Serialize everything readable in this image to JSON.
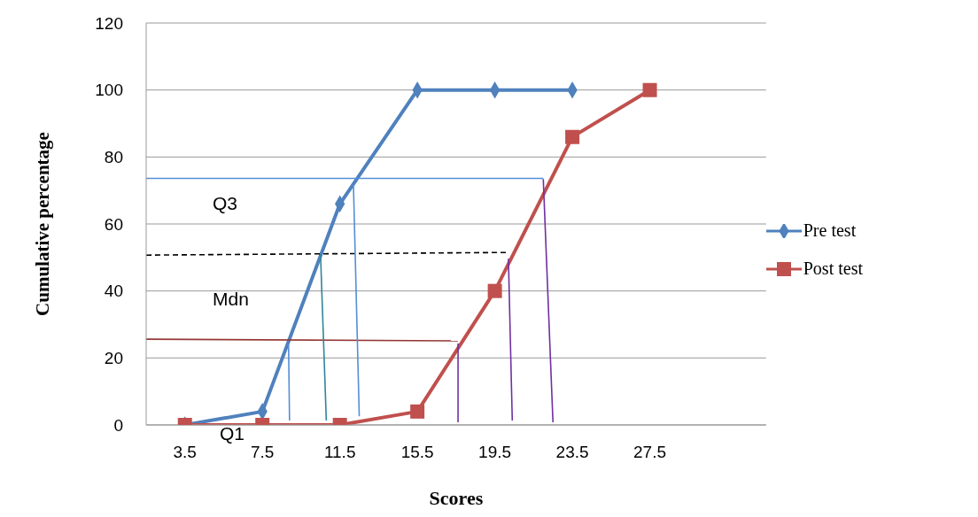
{
  "chart_data": {
    "type": "line",
    "xlabel": "Scores",
    "ylabel": "Cumulative percentage",
    "xlim": [
      1.5,
      33.5
    ],
    "xticks": [
      3.5,
      7.5,
      11.5,
      15.5,
      19.5,
      23.5,
      27.5
    ],
    "ylim": [
      0,
      120
    ],
    "yticks": [
      0,
      20,
      40,
      60,
      80,
      100,
      120
    ],
    "grid": "y",
    "legend": "right",
    "x": [
      3.5,
      7.5,
      11.5,
      15.5,
      19.5,
      23.5,
      27.5
    ],
    "series": [
      {
        "name": "Pre test",
        "color": "#4f81bd",
        "marker": "diamond",
        "values": [
          0,
          4,
          66,
          100,
          100,
          100,
          null
        ]
      },
      {
        "name": "Post test",
        "color": "#c0504d",
        "marker": "square",
        "values": [
          0,
          0,
          0,
          4,
          40,
          86,
          100
        ]
      },
      {
        "color": "#558ed5",
        "marker": "none",
        "x": [
          1.5,
          22.0
        ],
        "values": [
          73.6,
          73.6
        ]
      },
      {
        "color": "#000000",
        "marker": "none",
        "line_style": "dashed",
        "x": [
          1.5,
          20.2
        ],
        "values": [
          50.7,
          51.5
        ]
      },
      {
        "color": "#953735",
        "marker": "none",
        "x": [
          1.5,
          17.6
        ],
        "values": [
          25.6,
          25.1
        ]
      },
      {
        "color": "#558ed5",
        "marker": "none",
        "x": [
          8.85,
          8.9
        ],
        "values": [
          24,
          1.3
        ]
      },
      {
        "color": "#31859c",
        "marker": "none",
        "x": [
          10.5,
          10.8
        ],
        "values": [
          51,
          1.3
        ]
      },
      {
        "color": "#558ed5",
        "marker": "none",
        "x": [
          12.2,
          12.5
        ],
        "values": [
          71.8,
          2.6
        ]
      },
      {
        "color": "#7030a0",
        "marker": "none",
        "x": [
          17.6,
          17.6
        ],
        "values": [
          24.3,
          0.8
        ]
      },
      {
        "color": "#7030a0",
        "marker": "none",
        "x": [
          20.2,
          20.4
        ],
        "values": [
          49.6,
          1.3
        ]
      },
      {
        "color": "#7030a0",
        "marker": "none",
        "x": [
          22.0,
          22.5
        ],
        "values": [
          73.4,
          0.8
        ]
      }
    ],
    "annotations": [
      "Q3",
      "Mdn",
      "Q1"
    ]
  }
}
